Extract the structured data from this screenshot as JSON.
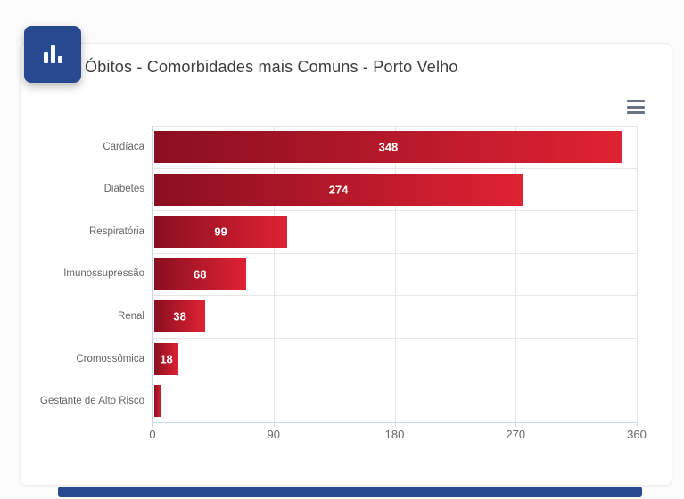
{
  "header": {
    "badge_icon": "bar-chart-icon"
  },
  "toolbar": {
    "context_menu_icon": "hamburger-icon"
  },
  "colors": {
    "badge": "#27498f",
    "bar_gradient_start": "#8a0f20",
    "bar_gradient_end": "#df2233",
    "axis_line": "#ccd6eb",
    "grid_line": "#e6e6e6",
    "axis_label": "#666666",
    "title": "#3d3d3d",
    "value_label": "#ffffff",
    "menu_icon": "#697386",
    "scrollbar": "#27498f"
  },
  "chart_data": {
    "type": "bar",
    "orientation": "horizontal",
    "title": "Óbitos - Comorbidades mais Comuns - Porto Velho",
    "categories": [
      "Cardíaca",
      "Diabetes",
      "Respiratória",
      "Imunossupressão",
      "Renal",
      "Cromossômica",
      "Gestante de Alto Risco"
    ],
    "values": [
      348,
      274,
      99,
      68,
      38,
      18,
      5
    ],
    "data_labels": [
      "348",
      "274",
      "99",
      "68",
      "38",
      "18",
      ""
    ],
    "xlabel": "",
    "ylabel": "",
    "xlim": [
      0,
      360
    ],
    "x_ticks": [
      0,
      90,
      180,
      270,
      360
    ],
    "grid": true,
    "legend": false
  }
}
